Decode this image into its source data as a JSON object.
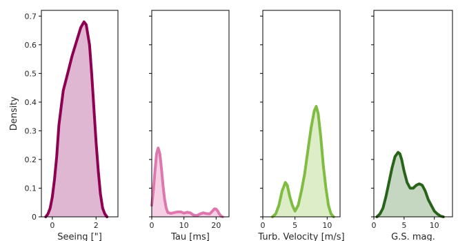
{
  "chart_data": [
    {
      "type": "area",
      "xlabel": "Seeing [\"]",
      "ylabel": "Density",
      "xlim": [
        -0.5,
        3.0
      ],
      "ylim": [
        0,
        0.72
      ],
      "xticks": [
        0,
        2
      ],
      "yticks": [
        0.0,
        0.1,
        0.2,
        0.3,
        0.4,
        0.5,
        0.6,
        0.7
      ],
      "ytick_labels_shown": true,
      "color": "#8e0152",
      "fill": "#dfb7d3",
      "series": [
        {
          "x": [
            -0.3,
            -0.2,
            -0.1,
            0.0,
            0.1,
            0.2,
            0.3,
            0.5,
            0.7,
            0.9,
            1.1,
            1.3,
            1.45,
            1.55,
            1.7,
            1.8,
            1.9,
            2.0,
            2.1,
            2.2,
            2.3,
            2.4,
            2.5
          ],
          "y": [
            0.0,
            0.01,
            0.03,
            0.07,
            0.13,
            0.21,
            0.32,
            0.44,
            0.5,
            0.56,
            0.61,
            0.66,
            0.68,
            0.67,
            0.6,
            0.5,
            0.38,
            0.26,
            0.16,
            0.08,
            0.03,
            0.01,
            0.0
          ]
        }
      ]
    },
    {
      "type": "area",
      "xlabel": "Tau [ms]",
      "ylabel": "",
      "xlim": [
        0,
        24
      ],
      "ylim": [
        0,
        0.72
      ],
      "xticks": [
        0,
        10,
        20
      ],
      "yticks": [
        0.0,
        0.1,
        0.2,
        0.3,
        0.4,
        0.5,
        0.6,
        0.7
      ],
      "ytick_labels_shown": false,
      "color": "#de77ae",
      "fill": "#f5d0e4",
      "series": [
        {
          "x": [
            0.0,
            0.5,
            1.0,
            1.5,
            2.0,
            2.5,
            3.0,
            3.5,
            4.0,
            4.5,
            5.0,
            6.0,
            7.0,
            8.0,
            9.0,
            10.0,
            11.0,
            12.0,
            13.0,
            14.0,
            15.0,
            16.0,
            17.0,
            18.0,
            19.0,
            19.5,
            20.0,
            20.5,
            21.0,
            21.5,
            22.0
          ],
          "y": [
            0.04,
            0.09,
            0.16,
            0.22,
            0.24,
            0.22,
            0.17,
            0.11,
            0.06,
            0.03,
            0.015,
            0.012,
            0.015,
            0.017,
            0.017,
            0.013,
            0.016,
            0.014,
            0.006,
            0.004,
            0.01,
            0.014,
            0.011,
            0.01,
            0.022,
            0.028,
            0.027,
            0.02,
            0.01,
            0.003,
            0.0
          ]
        }
      ]
    },
    {
      "type": "area",
      "xlabel": "Turb. Velocity [m/s]",
      "ylabel": "",
      "xlim": [
        0,
        12
      ],
      "ylim": [
        0,
        0.72
      ],
      "xticks": [
        0,
        5,
        10
      ],
      "yticks": [
        0.0,
        0.1,
        0.2,
        0.3,
        0.4,
        0.5,
        0.6,
        0.7
      ],
      "ytick_labels_shown": false,
      "color": "#7fbc41",
      "fill": "#dcedc8",
      "series": [
        {
          "x": [
            1.5,
            2.0,
            2.5,
            3.0,
            3.5,
            3.8,
            4.2,
            4.6,
            5.0,
            5.5,
            6.0,
            6.5,
            7.0,
            7.5,
            8.0,
            8.3,
            8.6,
            9.0,
            9.4,
            9.8,
            10.2,
            10.6,
            11.0
          ],
          "y": [
            0.0,
            0.01,
            0.04,
            0.09,
            0.12,
            0.11,
            0.07,
            0.04,
            0.02,
            0.04,
            0.09,
            0.15,
            0.23,
            0.31,
            0.37,
            0.385,
            0.36,
            0.28,
            0.18,
            0.1,
            0.04,
            0.01,
            0.0
          ]
        }
      ]
    },
    {
      "type": "area",
      "xlabel": "G.S. mag.",
      "ylabel": "",
      "xlim": [
        0,
        13
      ],
      "ylim": [
        0,
        0.72
      ],
      "xticks": [
        0,
        5,
        10
      ],
      "yticks": [
        0.0,
        0.1,
        0.2,
        0.3,
        0.4,
        0.5,
        0.6,
        0.7
      ],
      "ytick_labels_shown": false,
      "color": "#276419",
      "fill": "#c5d6c1",
      "series": [
        {
          "x": [
            0.5,
            1.0,
            1.5,
            2.0,
            2.5,
            3.0,
            3.5,
            4.0,
            4.3,
            4.6,
            5.0,
            5.5,
            6.0,
            6.5,
            7.0,
            7.5,
            8.0,
            8.5,
            9.0,
            9.5,
            10.0,
            10.5,
            11.0,
            11.5
          ],
          "y": [
            0.0,
            0.01,
            0.03,
            0.07,
            0.12,
            0.17,
            0.21,
            0.225,
            0.22,
            0.2,
            0.16,
            0.12,
            0.1,
            0.1,
            0.11,
            0.115,
            0.11,
            0.09,
            0.06,
            0.04,
            0.02,
            0.01,
            0.003,
            0.0
          ]
        }
      ]
    }
  ]
}
